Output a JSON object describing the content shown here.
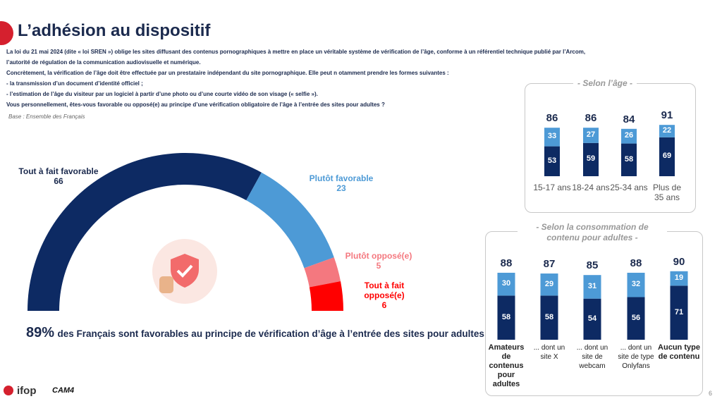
{
  "title": "L’adhésion au dispositif",
  "intro": [
    "La loi du 21 mai 2024 (dite « loi SREN ») oblige les sites diffusant des contenus pornographiques à mettre en place un véritable système de vérification de l’âge, conforme à un référentiel technique publié par l’Arcom,",
    "l’autorité de régulation de la communication audiovisuelle et numérique.",
    "Concrètement, la vérification de l’âge doit être effectuée par un prestataire indépendant du site pornographique. Elle peut n otamment prendre les formes suivantes :",
    "- la transmission d’un document d’identité officiel ;",
    "- l’estimation de l’âge du visiteur par un logiciel à partir d’une photo ou d’une courte vidéo de son visage (« selfie »).",
    "Vous personnellement, êtes-vous favorable ou opposé(e) au principe d’une vérification obligatoire de l’âge à l’entrée des sites pour adultes ?"
  ],
  "base": "Base : Ensemble des Français",
  "headline": {
    "figure": "89%",
    "text": "des Français sont favorables au principe de vérification d’âge à l’entrée des sites pour adultes"
  },
  "logos": [
    "ifop",
    "CAM4"
  ],
  "page_number": "6",
  "chart_data": [
    {
      "type": "semi_donut",
      "categories": [
        "Tout à fait favorable",
        "Plutôt favorable",
        "Plutôt opposé(e)",
        "Tout à fait opposé(e)"
      ],
      "values": [
        66,
        23,
        5,
        6
      ],
      "colors": [
        "#0d2a63",
        "#4d9ad6",
        "#f4787f",
        "#ff0000"
      ]
    },
    {
      "type": "stacked_bar",
      "title": "- Selon l’âge -",
      "categories": [
        "15-17 ans",
        "18-24 ans",
        "25-34 ans",
        "Plus de 35 ans"
      ],
      "totals": [
        86,
        86,
        84,
        91
      ],
      "series": [
        {
          "color": "#0d2a63",
          "values": [
            53,
            59,
            58,
            69
          ]
        },
        {
          "color": "#4d9ad6",
          "values": [
            33,
            27,
            26,
            22
          ]
        }
      ]
    },
    {
      "type": "stacked_bar",
      "title": "- Selon la consommation de contenu pour adultes -",
      "categories": [
        "Amateurs de contenus pour adultes",
        "... dont un site X",
        "... dont un site de webcam",
        "... dont un site de type Onlyfans",
        "Aucun type de contenu"
      ],
      "totals": [
        88,
        87,
        85,
        88,
        90
      ],
      "series": [
        {
          "color": "#0d2a63",
          "values": [
            58,
            58,
            54,
            56,
            71
          ]
        },
        {
          "color": "#4d9ad6",
          "values": [
            30,
            29,
            31,
            32,
            19
          ]
        }
      ]
    }
  ]
}
